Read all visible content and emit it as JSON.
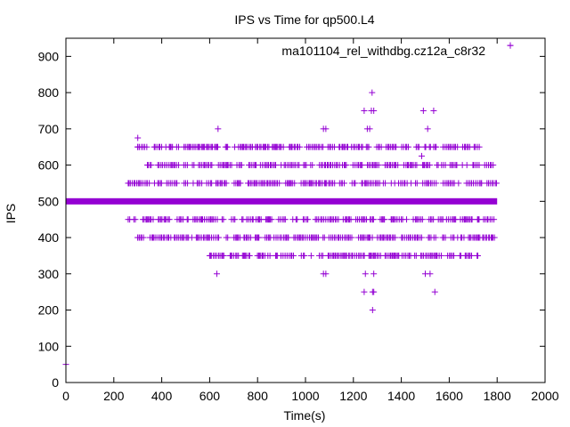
{
  "chart_data": {
    "type": "scatter",
    "title": "IPS vs Time for qp500.L4",
    "xlabel": "Time(s)",
    "ylabel": "IPS",
    "xlim": [
      0,
      2000
    ],
    "ylim": [
      0,
      950
    ],
    "xticks": [
      0,
      200,
      400,
      600,
      800,
      1000,
      1200,
      1400,
      1600,
      1800,
      2000
    ],
    "yticks": [
      0,
      100,
      200,
      300,
      400,
      500,
      600,
      700,
      800,
      900
    ],
    "grid": false,
    "legend": "top-right",
    "marker": "plus",
    "color": "#9400d3",
    "series": [
      {
        "name": "ma101104_rel_withdbg.cz12a_c8r32",
        "dense_band": {
          "y": 500,
          "x_range": [
            0,
            1800
          ],
          "description": "continuous samples at 500 IPS"
        },
        "band_levels": [
          {
            "y": 450,
            "x_range": [
              260,
              1800
            ]
          },
          {
            "y": 550,
            "x_range": [
              260,
              1800
            ]
          },
          {
            "y": 400,
            "x_range": [
              300,
              1790
            ]
          },
          {
            "y": 600,
            "x_range": [
              340,
              1790
            ]
          },
          {
            "y": 650,
            "x_range": [
              300,
              1730
            ]
          },
          {
            "y": 350,
            "x_range": [
              600,
              1720
            ]
          }
        ],
        "points": [
          {
            "x": 0,
            "y": 50
          },
          {
            "x": 300,
            "y": 675
          },
          {
            "x": 300,
            "y": 650
          },
          {
            "x": 300,
            "y": 400
          },
          {
            "x": 630,
            "y": 300
          },
          {
            "x": 635,
            "y": 700
          },
          {
            "x": 1075,
            "y": 700
          },
          {
            "x": 1085,
            "y": 700
          },
          {
            "x": 1075,
            "y": 300
          },
          {
            "x": 1085,
            "y": 300
          },
          {
            "x": 1245,
            "y": 750
          },
          {
            "x": 1275,
            "y": 750
          },
          {
            "x": 1285,
            "y": 750
          },
          {
            "x": 1258,
            "y": 700
          },
          {
            "x": 1268,
            "y": 700
          },
          {
            "x": 1278,
            "y": 800
          },
          {
            "x": 1250,
            "y": 300
          },
          {
            "x": 1285,
            "y": 300
          },
          {
            "x": 1245,
            "y": 250
          },
          {
            "x": 1280,
            "y": 250
          },
          {
            "x": 1285,
            "y": 250
          },
          {
            "x": 1280,
            "y": 200
          },
          {
            "x": 1492,
            "y": 750
          },
          {
            "x": 1535,
            "y": 750
          },
          {
            "x": 1485,
            "y": 625
          },
          {
            "x": 1510,
            "y": 700
          },
          {
            "x": 1540,
            "y": 250
          },
          {
            "x": 1500,
            "y": 300
          },
          {
            "x": 1520,
            "y": 300
          },
          {
            "x": 1855,
            "y": 930
          }
        ]
      }
    ]
  }
}
